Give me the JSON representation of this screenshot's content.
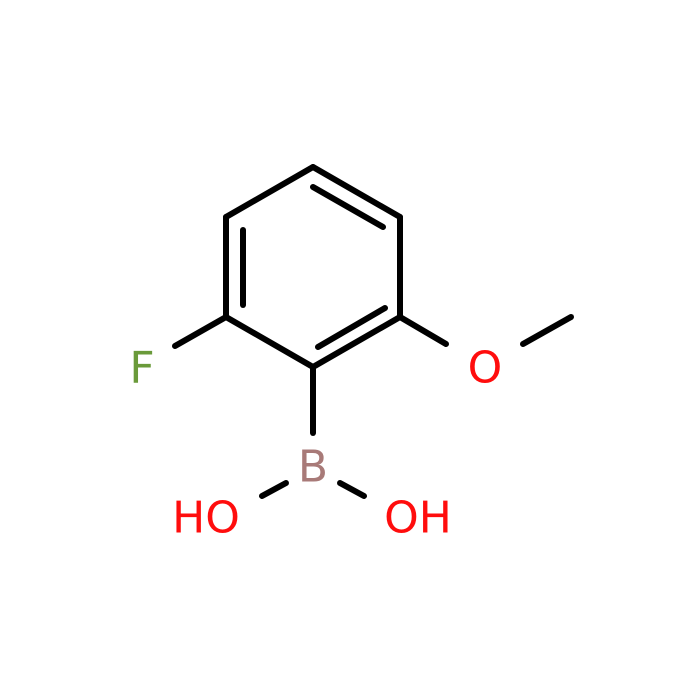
{
  "atoms": {
    "f": "F",
    "o": "O",
    "b": "B",
    "ho": "HO",
    "oh": "OH"
  }
}
